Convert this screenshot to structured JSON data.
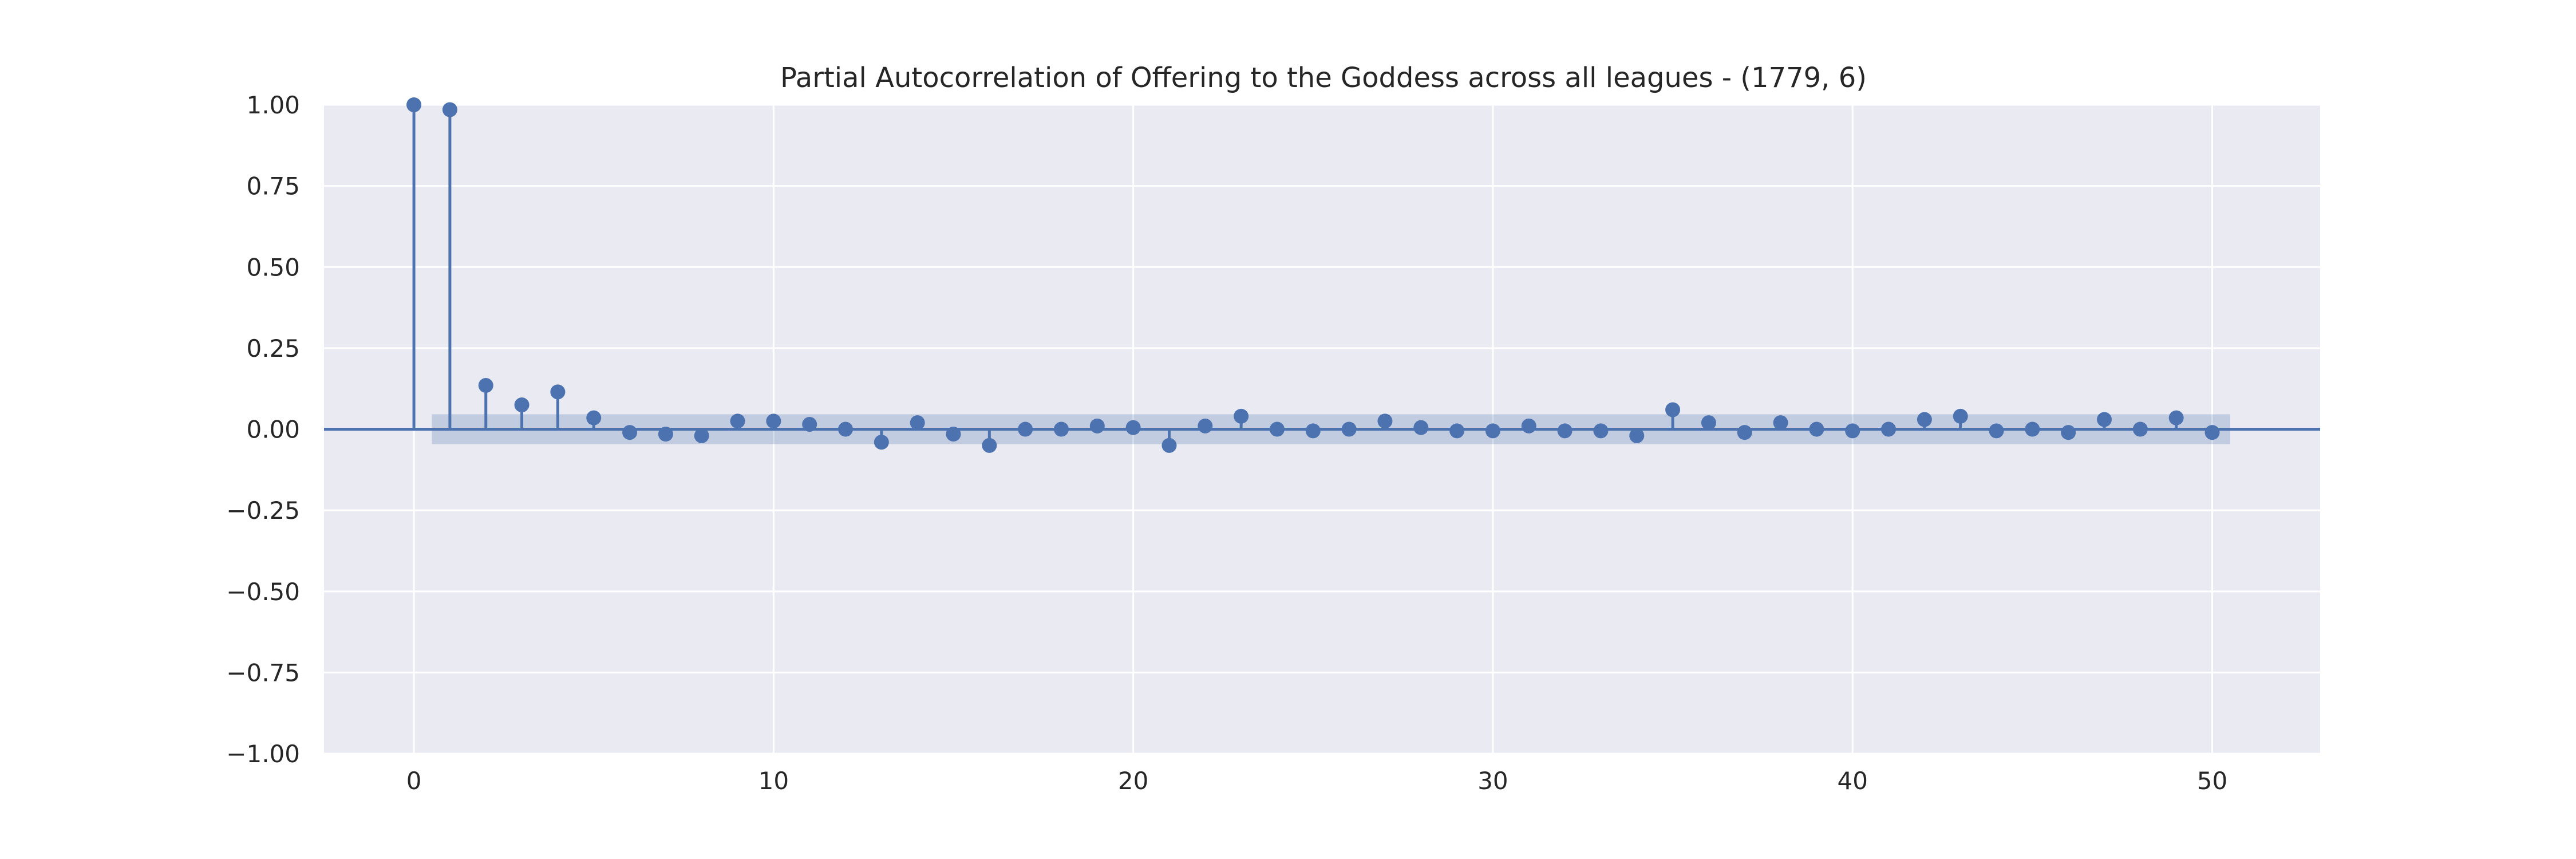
{
  "chart_data": {
    "type": "stem",
    "title": "Partial Autocorrelation of Offering to the Goddess across all leagues - (1779, 6)",
    "xlabel": "",
    "ylabel": "",
    "xlim": [
      -2.5,
      53
    ],
    "ylim": [
      -1.0,
      1.0
    ],
    "grid": true,
    "x_ticks": [
      0,
      10,
      20,
      30,
      40,
      50
    ],
    "x_tick_labels": [
      "0",
      "10",
      "20",
      "30",
      "40",
      "50"
    ],
    "y_ticks": [
      1.0,
      0.75,
      0.5,
      0.25,
      0.0,
      -0.25,
      -0.5,
      -0.75,
      -1.0
    ],
    "y_tick_labels": [
      "1.00",
      "0.75",
      "0.50",
      "0.25",
      "0.00",
      "−0.25",
      "−0.50",
      "−0.75",
      "−1.00"
    ],
    "confidence_band": {
      "x_range": [
        0.5,
        50.5
      ],
      "lower": -0.046,
      "upper": 0.046
    },
    "lags": [
      0,
      1,
      2,
      3,
      4,
      5,
      6,
      7,
      8,
      9,
      10,
      11,
      12,
      13,
      14,
      15,
      16,
      17,
      18,
      19,
      20,
      21,
      22,
      23,
      24,
      25,
      26,
      27,
      28,
      29,
      30,
      31,
      32,
      33,
      34,
      35,
      36,
      37,
      38,
      39,
      40,
      41,
      42,
      43,
      44,
      45,
      46,
      47,
      48,
      49,
      50
    ],
    "values": [
      1.0,
      0.985,
      0.135,
      0.075,
      0.115,
      0.035,
      -0.01,
      -0.015,
      -0.02,
      0.025,
      0.025,
      0.015,
      0.0,
      -0.04,
      0.02,
      -0.015,
      -0.05,
      0.0,
      0.0,
      0.01,
      0.005,
      -0.05,
      0.01,
      0.04,
      0.0,
      -0.005,
      0.0,
      0.025,
      0.005,
      -0.005,
      -0.005,
      0.01,
      -0.005,
      -0.005,
      -0.02,
      0.06,
      0.02,
      -0.01,
      0.02,
      0.0,
      -0.005,
      0.0,
      0.03,
      0.04,
      -0.005,
      0.0,
      -0.01,
      0.03,
      0.0,
      0.035,
      -0.01
    ],
    "colors": {
      "background": "#eaeaf2",
      "grid": "#ffffff",
      "stem": "#4c72b0",
      "band": "#4c72b0"
    }
  }
}
